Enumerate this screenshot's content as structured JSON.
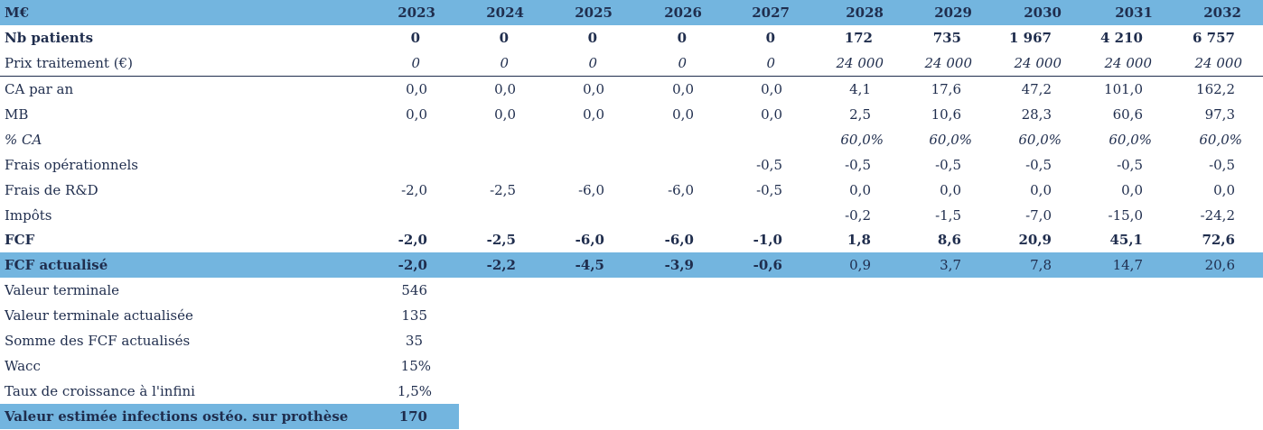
{
  "header": {
    "label": "M€",
    "years": [
      "2023",
      "2024",
      "2025",
      "2026",
      "2027",
      "2028",
      "2029",
      "2030",
      "2031",
      "2032"
    ]
  },
  "rows": [
    {
      "label": "Nb patients",
      "values": [
        "0",
        "0",
        "0",
        "0",
        "0",
        "172",
        "735",
        "1 967",
        "4 210",
        "6 757"
      ]
    },
    {
      "label": "Prix traitement (€)",
      "values": [
        "0",
        "0",
        "0",
        "0",
        "0",
        "24 000",
        "24 000",
        "24 000",
        "24 000",
        "24 000"
      ]
    },
    {
      "label": "CA par an",
      "values": [
        "0,0",
        "0,0",
        "0,0",
        "0,0",
        "0,0",
        "4,1",
        "17,6",
        "47,2",
        "101,0",
        "162,2"
      ]
    },
    {
      "label": "MB",
      "values": [
        "0,0",
        "0,0",
        "0,0",
        "0,0",
        "0,0",
        "2,5",
        "10,6",
        "28,3",
        "60,6",
        "97,3"
      ]
    },
    {
      "label": "% CA",
      "values": [
        "",
        "",
        "",
        "",
        "",
        "60,0%",
        "60,0%",
        "60,0%",
        "60,0%",
        "60,0%"
      ]
    },
    {
      "label": "Frais opérationnels",
      "values": [
        "",
        "",
        "",
        "",
        "-0,5",
        "-0,5",
        "-0,5",
        "-0,5",
        "-0,5",
        "-0,5"
      ]
    },
    {
      "label": "Frais de R&D",
      "values": [
        "-2,0",
        "-2,5",
        "-6,0",
        "-6,0",
        "-0,5",
        "0,0",
        "0,0",
        "0,0",
        "0,0",
        "0,0"
      ]
    },
    {
      "label": "Impôts",
      "values": [
        "",
        "",
        "",
        "",
        "",
        "-0,2",
        "-1,5",
        "-7,0",
        "-15,0",
        "-24,2"
      ]
    },
    {
      "label": "FCF",
      "values": [
        "-2,0",
        "-2,5",
        "-6,0",
        "-6,0",
        "-1,0",
        "1,8",
        "8,6",
        "20,9",
        "45,1",
        "72,6"
      ]
    },
    {
      "label": "FCF actualisé",
      "values": [
        "-2,0",
        "-2,2",
        "-4,5",
        "-3,9",
        "-0,6",
        "0,9",
        "3,7",
        "7,8",
        "14,7",
        "20,6"
      ]
    }
  ],
  "summary": [
    {
      "label": "Valeur terminale",
      "value": "546"
    },
    {
      "label": "Valeur terminale actualisée",
      "value": "135"
    },
    {
      "label": "Somme des FCF actualisés",
      "value": "35"
    },
    {
      "label": "Wacc",
      "value": "15%"
    },
    {
      "label": "Taux de croissance à l'infini",
      "value": "1,5%"
    },
    {
      "label": "Valeur estimée infections ostéo. sur prothèse",
      "value": "170"
    }
  ],
  "colors": {
    "highlight": "#73b5df",
    "text": "#1f2d4d"
  }
}
